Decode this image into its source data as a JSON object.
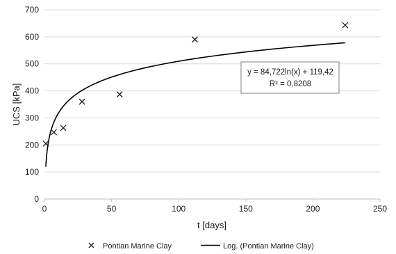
{
  "chart_data": {
    "type": "scatter",
    "xlabel": "t [days]",
    "ylabel": "UCS [kPa]",
    "xlim": [
      0,
      250
    ],
    "ylim": [
      0,
      700
    ],
    "x_ticks": [
      0,
      50,
      100,
      150,
      200,
      250
    ],
    "y_ticks": [
      0,
      100,
      200,
      300,
      400,
      500,
      600,
      700
    ],
    "grid": "horizontal",
    "series": [
      {
        "name": "Pontian Marine Clay",
        "marker": "x",
        "x": [
          1,
          7,
          14,
          28,
          56,
          112,
          224
        ],
        "y": [
          205,
          247,
          263,
          360,
          387,
          590,
          643
        ]
      }
    ],
    "trendline": {
      "name": "Log. (Pontian Marine Clay)",
      "type": "log",
      "a": 84.722,
      "b": 119.42,
      "x_start": 1,
      "x_end": 224
    },
    "annotation": {
      "equation": "y = 84,722ln(x) + 119,42",
      "r_squared": "R² = 0,8208"
    },
    "legend": {
      "placement": "bottom",
      "entries": [
        "Pontian Marine Clay",
        "Log. (Pontian Marine Clay)"
      ]
    },
    "colors": {
      "marker": "#1a1a1a",
      "line": "#000000",
      "grid": "#d9d9d9"
    }
  }
}
